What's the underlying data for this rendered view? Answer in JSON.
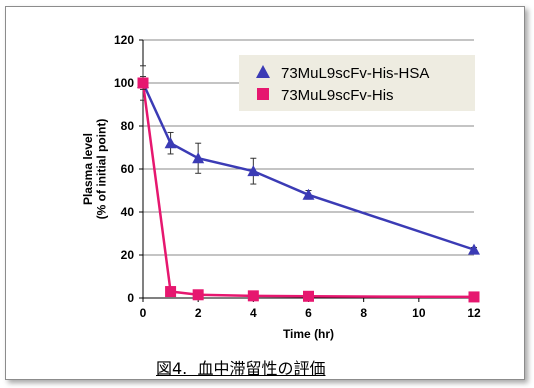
{
  "chart_data": {
    "type": "line",
    "xlabel": "Time (hr)",
    "ylabel_lines": [
      "Plasma level",
      "(% of initial point)"
    ],
    "xlim": [
      0,
      12
    ],
    "ylim": [
      0,
      120
    ],
    "xticks": [
      0,
      2,
      4,
      6,
      8,
      10,
      12
    ],
    "yticks": [
      0,
      20,
      40,
      60,
      80,
      100,
      120
    ],
    "grid": "horizontal",
    "legend_position": "top-right",
    "series": [
      {
        "name": "73MuL9scFv-His-HSA",
        "color": "#3b3bb5",
        "marker": "triangle",
        "x": [
          0,
          1,
          2,
          4,
          6,
          12
        ],
        "y": [
          100,
          72,
          65,
          59,
          48,
          22.5
        ],
        "err": [
          8,
          5,
          7,
          6,
          2,
          1
        ]
      },
      {
        "name": "73MuL9scFv-His",
        "color": "#e6176f",
        "marker": "square",
        "x": [
          0,
          1,
          2,
          4,
          6,
          12
        ],
        "y": [
          100,
          3,
          1.5,
          1,
          0.8,
          0.5
        ],
        "err": [
          3,
          1,
          0.5,
          0.5,
          0.3,
          0.2
        ]
      }
    ]
  },
  "caption": "図4.  血中滞留性の評価"
}
